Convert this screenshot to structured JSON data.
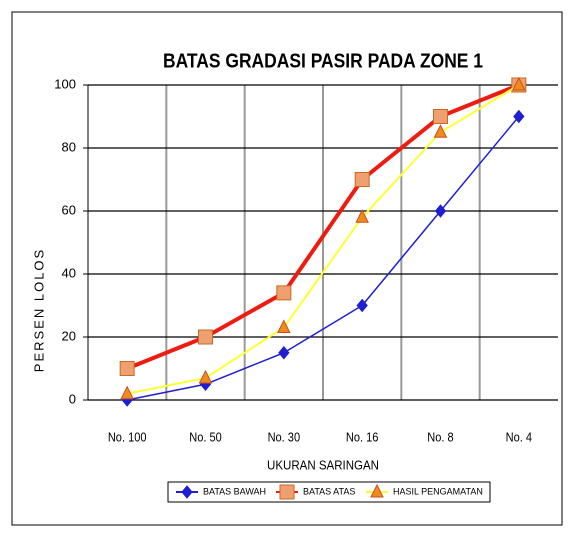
{
  "chart_data": {
    "type": "line",
    "title": "BATAS GRADASI PASIR PADA ZONE 1",
    "x_label": "UKURAN SARINGAN",
    "y_label": "PERSEN LOLOS",
    "categories": [
      "No. 100",
      "No. 50",
      "No. 30",
      "No. 16",
      "No. 8",
      "No. 4"
    ],
    "series": [
      {
        "name": "BATAS BAWAH",
        "color": "#1f1fd0",
        "marker": "diamond",
        "values": [
          0,
          5,
          15,
          30,
          60,
          90
        ]
      },
      {
        "name": "BATAS ATAS",
        "color": "#ee1c10",
        "marker": "square",
        "values": [
          10,
          20,
          34,
          70,
          90,
          100
        ]
      },
      {
        "name": "HASIL PENGAMATAN",
        "color": "#ffff33",
        "marker": "triangle",
        "values": [
          2,
          7,
          23,
          58,
          85,
          100
        ]
      }
    ],
    "ylim": [
      0,
      100
    ],
    "yticks": [
      0,
      20,
      40,
      60,
      80,
      100
    ],
    "grid": true,
    "legend": "bottom"
  }
}
